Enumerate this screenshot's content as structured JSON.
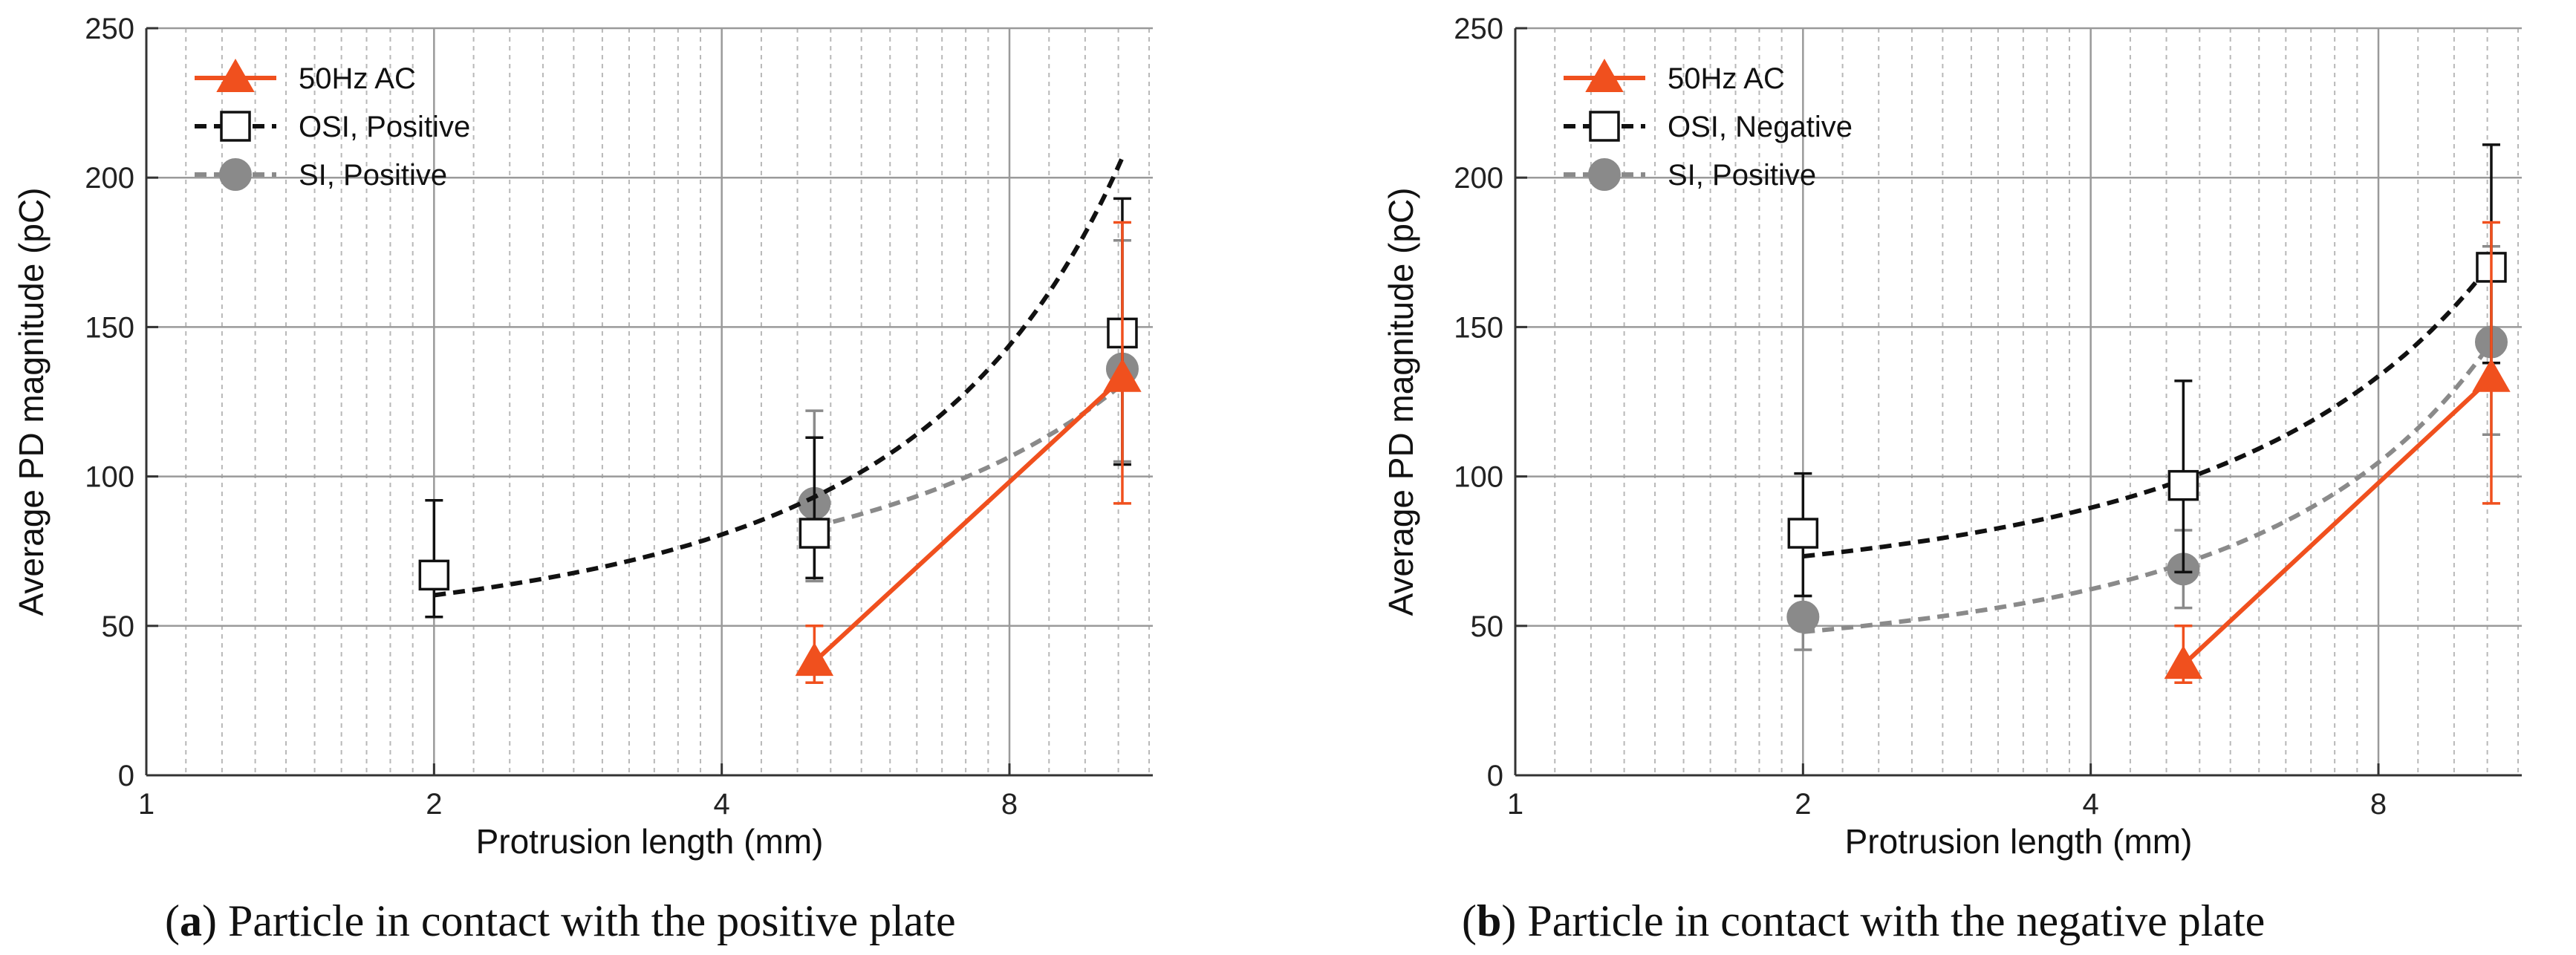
{
  "chart_data": [
    {
      "type": "line",
      "panel": "a",
      "caption_prefix": "(",
      "caption_letter": "a",
      "caption_suffix": ") Particle in contact with the positive plate",
      "xlabel": "Protrusion length (mm)",
      "ylabel": "Average PD magnitude (pC)",
      "xscale": "log2",
      "xlim": [
        1,
        11.3
      ],
      "ylim": [
        0,
        250
      ],
      "xticks": [
        1,
        2,
        4,
        8
      ],
      "xtick_labels": [
        "1",
        "2",
        "4",
        "8"
      ],
      "yticks": [
        0,
        50,
        100,
        150,
        200,
        250
      ],
      "ytick_labels": [
        "0",
        "50",
        "100",
        "150",
        "200",
        "250"
      ],
      "legend_position": "top-left",
      "series": [
        {
          "name": "50Hz AC",
          "marker": "triangle",
          "line": "solid",
          "color": "#f0501e",
          "points": [
            {
              "x": 5,
              "y": 38,
              "err_low": 7,
              "err_high": 12
            },
            {
              "x": 10.5,
              "y": 133,
              "err_low": 42,
              "err_high": 52
            }
          ]
        },
        {
          "name": "OSI, Positive",
          "marker": "square",
          "line": "dashed",
          "color": "#111111",
          "points": [
            {
              "x": 2,
              "y": 67,
              "err_low": 14,
              "err_high": 25
            },
            {
              "x": 5,
              "y": 81,
              "err_low": 15,
              "err_high": 32
            },
            {
              "x": 10.5,
              "y": 148,
              "err_low": 44,
              "err_high": 45
            }
          ],
          "fit": {
            "a": 45.1,
            "b": 0.145
          }
        },
        {
          "name": "SI, Positive",
          "marker": "circle",
          "line": "dashed",
          "color": "#8a8a8a",
          "points": [
            {
              "x": 5,
              "y": 91,
              "err_low": 26,
              "err_high": 31
            },
            {
              "x": 10.5,
              "y": 136,
              "err_low": 31,
              "err_high": 43
            }
          ],
          "fit": {
            "a": 55.15,
            "b": 0.0823
          }
        }
      ]
    },
    {
      "type": "line",
      "panel": "b",
      "caption_prefix": "(",
      "caption_letter": "b",
      "caption_suffix": ") Particle in contact with the negative plate",
      "xlabel": "Protrusion length (mm)",
      "ylabel": "Average PD magnitude (pC)",
      "xscale": "log2",
      "xlim": [
        1,
        11.3
      ],
      "ylim": [
        0,
        250
      ],
      "xticks": [
        1,
        2,
        4,
        8
      ],
      "xtick_labels": [
        "1",
        "2",
        "4",
        "8"
      ],
      "yticks": [
        0,
        50,
        100,
        150,
        200,
        250
      ],
      "ytick_labels": [
        "0",
        "50",
        "100",
        "150",
        "200",
        "250"
      ],
      "legend_position": "top-left",
      "series": [
        {
          "name": "50Hz AC",
          "marker": "triangle",
          "line": "solid",
          "color": "#f0501e",
          "points": [
            {
              "x": 5,
              "y": 37,
              "err_low": 6,
              "err_high": 13
            },
            {
              "x": 10.5,
              "y": 133,
              "err_low": 42,
              "err_high": 52
            }
          ]
        },
        {
          "name": "OSI, Negative",
          "marker": "square",
          "line": "dashed",
          "color": "#111111",
          "points": [
            {
              "x": 2,
              "y": 81,
              "err_low": 21,
              "err_high": 20
            },
            {
              "x": 5,
              "y": 97,
              "err_low": 29,
              "err_high": 35
            },
            {
              "x": 10.5,
              "y": 170,
              "err_low": 32,
              "err_high": 41
            }
          ],
          "fit": {
            "a": 60.0,
            "b": 0.1
          }
        },
        {
          "name": "SI, Positive",
          "marker": "circle",
          "line": "dashed",
          "color": "#8a8a8a",
          "points": [
            {
              "x": 2,
              "y": 53,
              "err_low": 11,
              "err_high": 7
            },
            {
              "x": 5,
              "y": 69,
              "err_low": 13,
              "err_high": 13
            },
            {
              "x": 10.5,
              "y": 145,
              "err_low": 31,
              "err_high": 32
            }
          ],
          "fit": {
            "a": 37.0,
            "b": 0.13
          }
        }
      ]
    }
  ],
  "colors": {
    "ac": "#f0501e",
    "osi": "#111111",
    "si": "#8a8a8a",
    "grid_major": "#9a9a9a",
    "grid_minor": "#b8b8b8"
  }
}
